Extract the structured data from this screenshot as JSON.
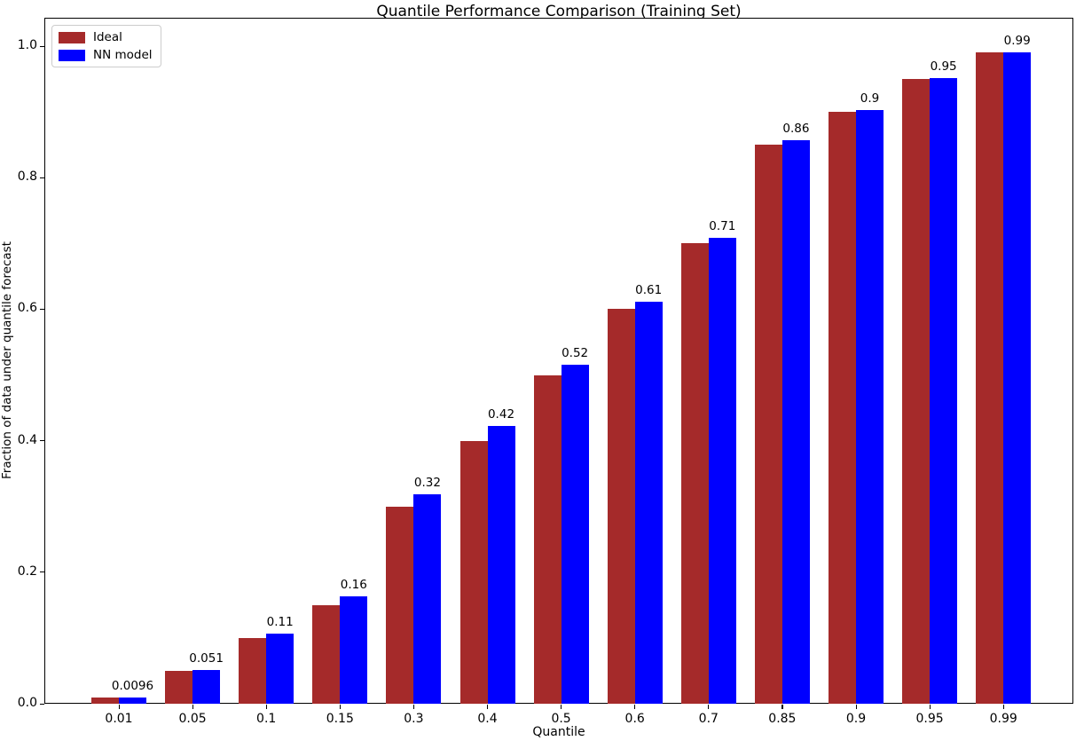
{
  "chart_data": {
    "type": "bar",
    "title": "Quantile Performance Comparison (Training Set)",
    "xlabel": "Quantile",
    "ylabel": "Fraction of data under quantile forecast",
    "categories": [
      "0.01",
      "0.05",
      "0.1",
      "0.15",
      "0.3",
      "0.4",
      "0.5",
      "0.6",
      "0.7",
      "0.85",
      "0.9",
      "0.95",
      "0.99"
    ],
    "series": [
      {
        "name": "Ideal",
        "color": "#A52A2A",
        "values": [
          0.01,
          0.05,
          0.1,
          0.15,
          0.3,
          0.4,
          0.5,
          0.6,
          0.7,
          0.85,
          0.9,
          0.95,
          0.99
        ]
      },
      {
        "name": "NN model",
        "color": "#0000FF",
        "values": [
          0.0096,
          0.051,
          0.107,
          0.163,
          0.318,
          0.422,
          0.516,
          0.611,
          0.709,
          0.857,
          0.903,
          0.951,
          0.99
        ]
      }
    ],
    "bar_labels": [
      "0.0096",
      "0.051",
      "0.11",
      "0.16",
      "0.32",
      "0.42",
      "0.52",
      "0.61",
      "0.71",
      "0.86",
      "0.9",
      "0.95",
      "0.99"
    ],
    "yticks": [
      "0.0",
      "0.2",
      "0.4",
      "0.6",
      "0.8",
      "1.0"
    ],
    "ylim": [
      0,
      1.0432
    ],
    "legend_position": "upper left",
    "grid": false,
    "axis_color": "#000000",
    "background_color": "#FFFFFF"
  }
}
